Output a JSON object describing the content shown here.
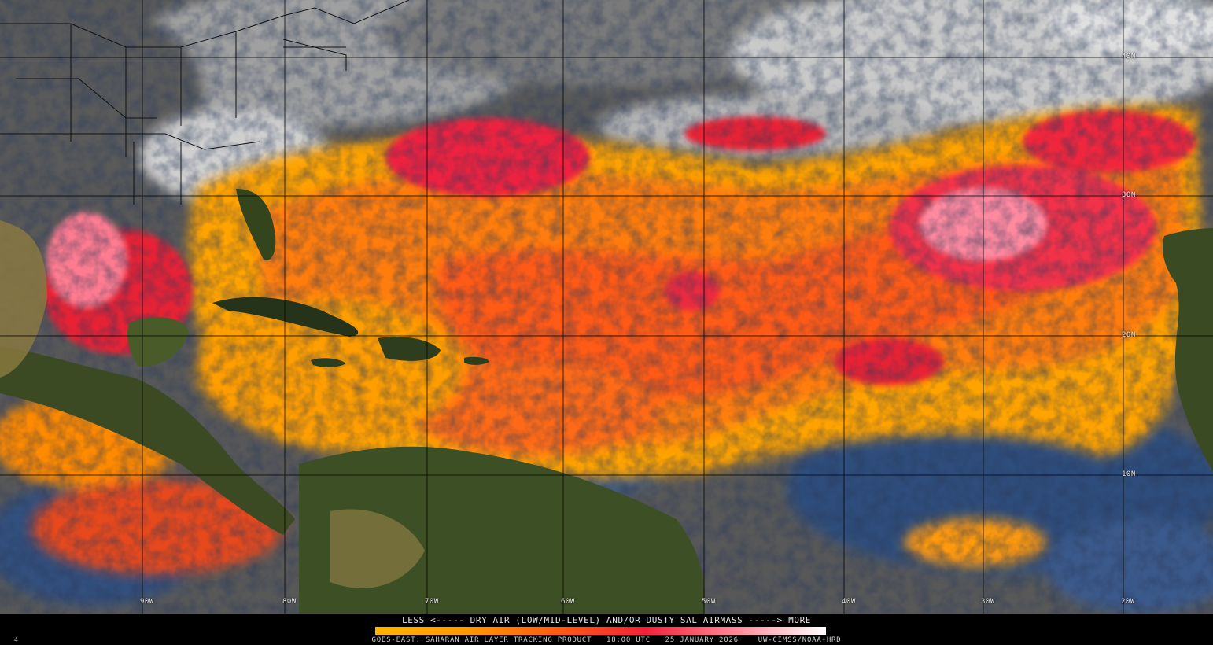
{
  "legend": {
    "caption": "LESS <----- DRY AIR (LOW/MID-LEVEL) AND/OR DUSTY SAL AIRMASS -----> MORE",
    "colors": [
      "#ffb400",
      "#ff9a00",
      "#ff5c10",
      "#f22038",
      "#ff8898",
      "#ffffff"
    ]
  },
  "footer": {
    "product": "GOES-EAST: SAHARAN AIR LAYER TRACKING PRODUCT",
    "time": "18:00 UTC",
    "date": "25 JANUARY 2026",
    "credit": "UW-CIMSS/NOAA-HRD",
    "corner_mark": "4"
  },
  "grid_labels": {
    "lat_40n": "40N",
    "lat_30n": "30N",
    "lat_20n": "20N",
    "lat_10n": "10N",
    "lon_90w": "90W",
    "lon_80w": "80W",
    "lon_70w": "70W",
    "lon_60w": "60W",
    "lon_50w": "50W",
    "lon_40w": "40W",
    "lon_30w": "30W",
    "lon_20w": "20W"
  },
  "colors": {
    "land": "#3a4a22",
    "land_tan": "#9a8a50",
    "clear_ocean": "#2f4d7c",
    "cloud_cold": "#d8d8d8",
    "cloud_grey": "#6e6e6e",
    "gridline": "#000000"
  }
}
